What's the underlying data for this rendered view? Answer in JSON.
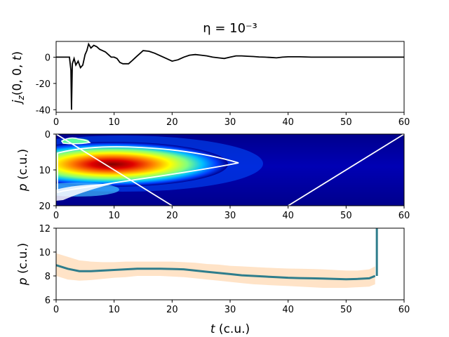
{
  "figure": {
    "title": "η = 10⁻³"
  },
  "chart_data": [
    {
      "type": "line",
      "panel": "top",
      "xlabel": "",
      "ylabel": "j_z(0, 0, t)",
      "xlim": [
        0,
        60
      ],
      "ylim": [
        -42,
        12
      ],
      "xticks": [
        "0",
        "10",
        "20",
        "30",
        "40",
        "50",
        "60"
      ],
      "yticks": [
        "0",
        "-20",
        "-40"
      ],
      "ytick_values": [
        0,
        -20,
        -40
      ],
      "series": [
        {
          "color": "#000000",
          "x": [
            0,
            2.3,
            2.55,
            2.65,
            2.8,
            3.1,
            3.4,
            3.8,
            4.2,
            4.6,
            5.0,
            5.3,
            5.6,
            6.0,
            6.5,
            7.0,
            7.5,
            8.0,
            8.5,
            9.0,
            9.5,
            10.0,
            10.5,
            11.0,
            11.5,
            12.0,
            12.5,
            13.0,
            13.5,
            14.0,
            14.5,
            15.0,
            16.0,
            17.0,
            18.0,
            19.0,
            20.0,
            21.0,
            22.0,
            23.0,
            24.0,
            25.0,
            26.0,
            27.0,
            28.0,
            29.0,
            30.0,
            31.0,
            32.0,
            33.0,
            34.0,
            35.0,
            36.0,
            37.0,
            38.0,
            39.0,
            40.0,
            42.0,
            44.0,
            46.0,
            48.0,
            50.0,
            52.0,
            54.0,
            56.0,
            58.0,
            60.0
          ],
          "y": [
            0,
            0,
            -10,
            -40,
            -5,
            -1,
            -6,
            -3,
            -8,
            -6,
            2,
            5,
            10,
            7,
            9,
            8,
            6,
            5,
            4,
            2,
            0,
            0,
            -1,
            -4,
            -5,
            -5,
            -5,
            -3,
            -1,
            1,
            3,
            5,
            4.5,
            3,
            1,
            -1,
            -3,
            -2,
            0,
            1.5,
            2,
            1.5,
            1,
            0,
            -0.5,
            -1,
            0,
            1,
            1,
            0.7,
            0.5,
            0.2,
            0,
            -0.2,
            -0.5,
            0,
            0.3,
            0.3,
            0,
            0,
            0,
            0,
            0,
            0,
            0,
            0,
            0
          ]
        }
      ]
    },
    {
      "type": "heatmap",
      "panel": "middle",
      "xlabel": "",
      "ylabel": "p (c.u.)",
      "xlim": [
        0,
        60
      ],
      "ylim": [
        20,
        0
      ],
      "xticks": [
        "0",
        "10",
        "20",
        "30",
        "40",
        "50",
        "60"
      ],
      "yticks": [
        "0",
        "10",
        "20"
      ],
      "ytick_values": [
        0,
        10,
        20
      ],
      "colormap": "jet",
      "peak": {
        "t": 10,
        "p": 8.5
      },
      "diagonal_lines": [
        {
          "from": [
            0,
            0
          ],
          "to": [
            20,
            20
          ]
        },
        {
          "from": [
            40,
            20
          ],
          "to": [
            60,
            0
          ]
        }
      ],
      "line_color": "#ffffff"
    },
    {
      "type": "line",
      "panel": "bottom",
      "xlabel": "t (c.u.)",
      "ylabel": "p (c.u.)",
      "xlim": [
        0,
        60
      ],
      "ylim": [
        6,
        12
      ],
      "xticks": [
        "0",
        "10",
        "20",
        "30",
        "40",
        "50",
        "60"
      ],
      "yticks": [
        "6",
        "8",
        "10",
        "12"
      ],
      "ytick_values": [
        6,
        8,
        10,
        12
      ],
      "series": [
        {
          "color": "#2e7d8c",
          "band_color": "#ffcc99",
          "x": [
            0,
            2,
            4,
            6,
            8,
            10,
            12,
            14,
            16,
            18,
            20,
            22,
            24,
            26,
            28,
            30,
            32,
            34,
            36,
            38,
            40,
            42,
            44,
            46,
            48,
            50,
            52,
            54,
            55
          ],
          "y": [
            8.9,
            8.6,
            8.4,
            8.4,
            8.45,
            8.5,
            8.55,
            8.6,
            8.6,
            8.6,
            8.58,
            8.55,
            8.45,
            8.35,
            8.25,
            8.15,
            8.05,
            8.0,
            7.95,
            7.9,
            7.85,
            7.82,
            7.8,
            7.78,
            7.75,
            7.72,
            7.75,
            7.8,
            8.0
          ],
          "upper": [
            9.9,
            9.6,
            9.3,
            9.2,
            9.15,
            9.15,
            9.2,
            9.2,
            9.2,
            9.2,
            9.2,
            9.15,
            9.1,
            9.0,
            8.95,
            8.85,
            8.8,
            8.75,
            8.7,
            8.65,
            8.62,
            8.6,
            8.58,
            8.55,
            8.5,
            8.45,
            8.45,
            8.55,
            8.8
          ],
          "lower": [
            8.0,
            7.7,
            7.6,
            7.65,
            7.75,
            7.85,
            7.9,
            8.0,
            8.0,
            8.0,
            7.95,
            7.9,
            7.8,
            7.7,
            7.6,
            7.5,
            7.4,
            7.3,
            7.25,
            7.2,
            7.15,
            7.1,
            7.05,
            7.0,
            7.0,
            7.0,
            7.05,
            7.1,
            7.3
          ],
          "end_spike": {
            "t": 55.3,
            "p_from": 8.0,
            "p_to": 12
          }
        }
      ]
    }
  ]
}
